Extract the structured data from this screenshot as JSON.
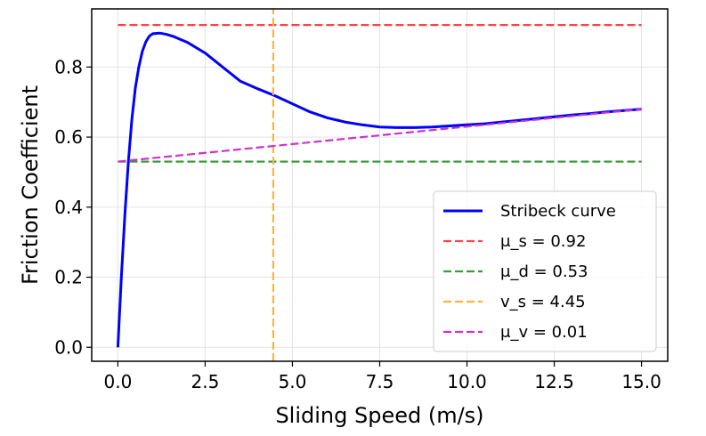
{
  "chart_data": {
    "type": "line",
    "title": "",
    "xlabel": "Sliding Speed (m/s)",
    "ylabel": "Friction Coefficient",
    "xlim": [
      -0.75,
      15.75
    ],
    "ylim": [
      -0.04,
      0.966
    ],
    "grid": true,
    "legend_position": "lower-right",
    "xticks": [
      0.0,
      2.5,
      5.0,
      7.5,
      10.0,
      12.5,
      15.0
    ],
    "xtick_labels": [
      "0.0",
      "2.5",
      "5.0",
      "7.5",
      "10.0",
      "12.5",
      "15.0"
    ],
    "yticks": [
      0.0,
      0.2,
      0.4,
      0.6,
      0.8
    ],
    "ytick_labels": [
      "0.0",
      "0.2",
      "0.4",
      "0.6",
      "0.8"
    ],
    "series": [
      {
        "name": "Stribeck curve",
        "color": "#0000ff",
        "style": "solid",
        "x": [
          0.0,
          0.1,
          0.2,
          0.3,
          0.4,
          0.5,
          0.6,
          0.7,
          0.8,
          0.9,
          1.0,
          1.2,
          1.4,
          1.6,
          2.0,
          2.5,
          3.0,
          3.5,
          4.0,
          4.5,
          5.0,
          5.5,
          6.0,
          6.5,
          7.0,
          7.5,
          8.0,
          8.5,
          9.0,
          9.5,
          10.0,
          10.5,
          11.0,
          11.5,
          12.0,
          12.5,
          13.0,
          13.5,
          14.0,
          14.5,
          15.0
        ],
        "y": [
          0.0,
          0.2,
          0.38,
          0.53,
          0.65,
          0.74,
          0.8,
          0.845,
          0.872,
          0.888,
          0.895,
          0.897,
          0.893,
          0.887,
          0.87,
          0.84,
          0.8,
          0.76,
          0.738,
          0.718,
          0.695,
          0.672,
          0.655,
          0.643,
          0.635,
          0.629,
          0.627,
          0.627,
          0.629,
          0.632,
          0.635,
          0.638,
          0.643,
          0.648,
          0.653,
          0.658,
          0.663,
          0.667,
          0.672,
          0.676,
          0.68
        ]
      },
      {
        "name": "μ_s = 0.92",
        "color": "#ff4444",
        "style": "dashed",
        "x": [
          0.0,
          15.0
        ],
        "y": [
          0.92,
          0.92
        ]
      },
      {
        "name": "μ_d = 0.53",
        "color": "#3d9a3d",
        "style": "dashed",
        "x": [
          0.0,
          15.0
        ],
        "y": [
          0.53,
          0.53
        ]
      },
      {
        "name": "v_s = 4.45",
        "color": "#ffb43c",
        "style": "dashed",
        "orientation": "vertical",
        "x": [
          4.45,
          4.45
        ],
        "y": [
          -0.04,
          0.966
        ]
      },
      {
        "name": "μ_v = 0.01",
        "color": "#cc33cc",
        "style": "dashed",
        "x": [
          0.0,
          15.0
        ],
        "y": [
          0.53,
          0.68
        ]
      }
    ]
  }
}
